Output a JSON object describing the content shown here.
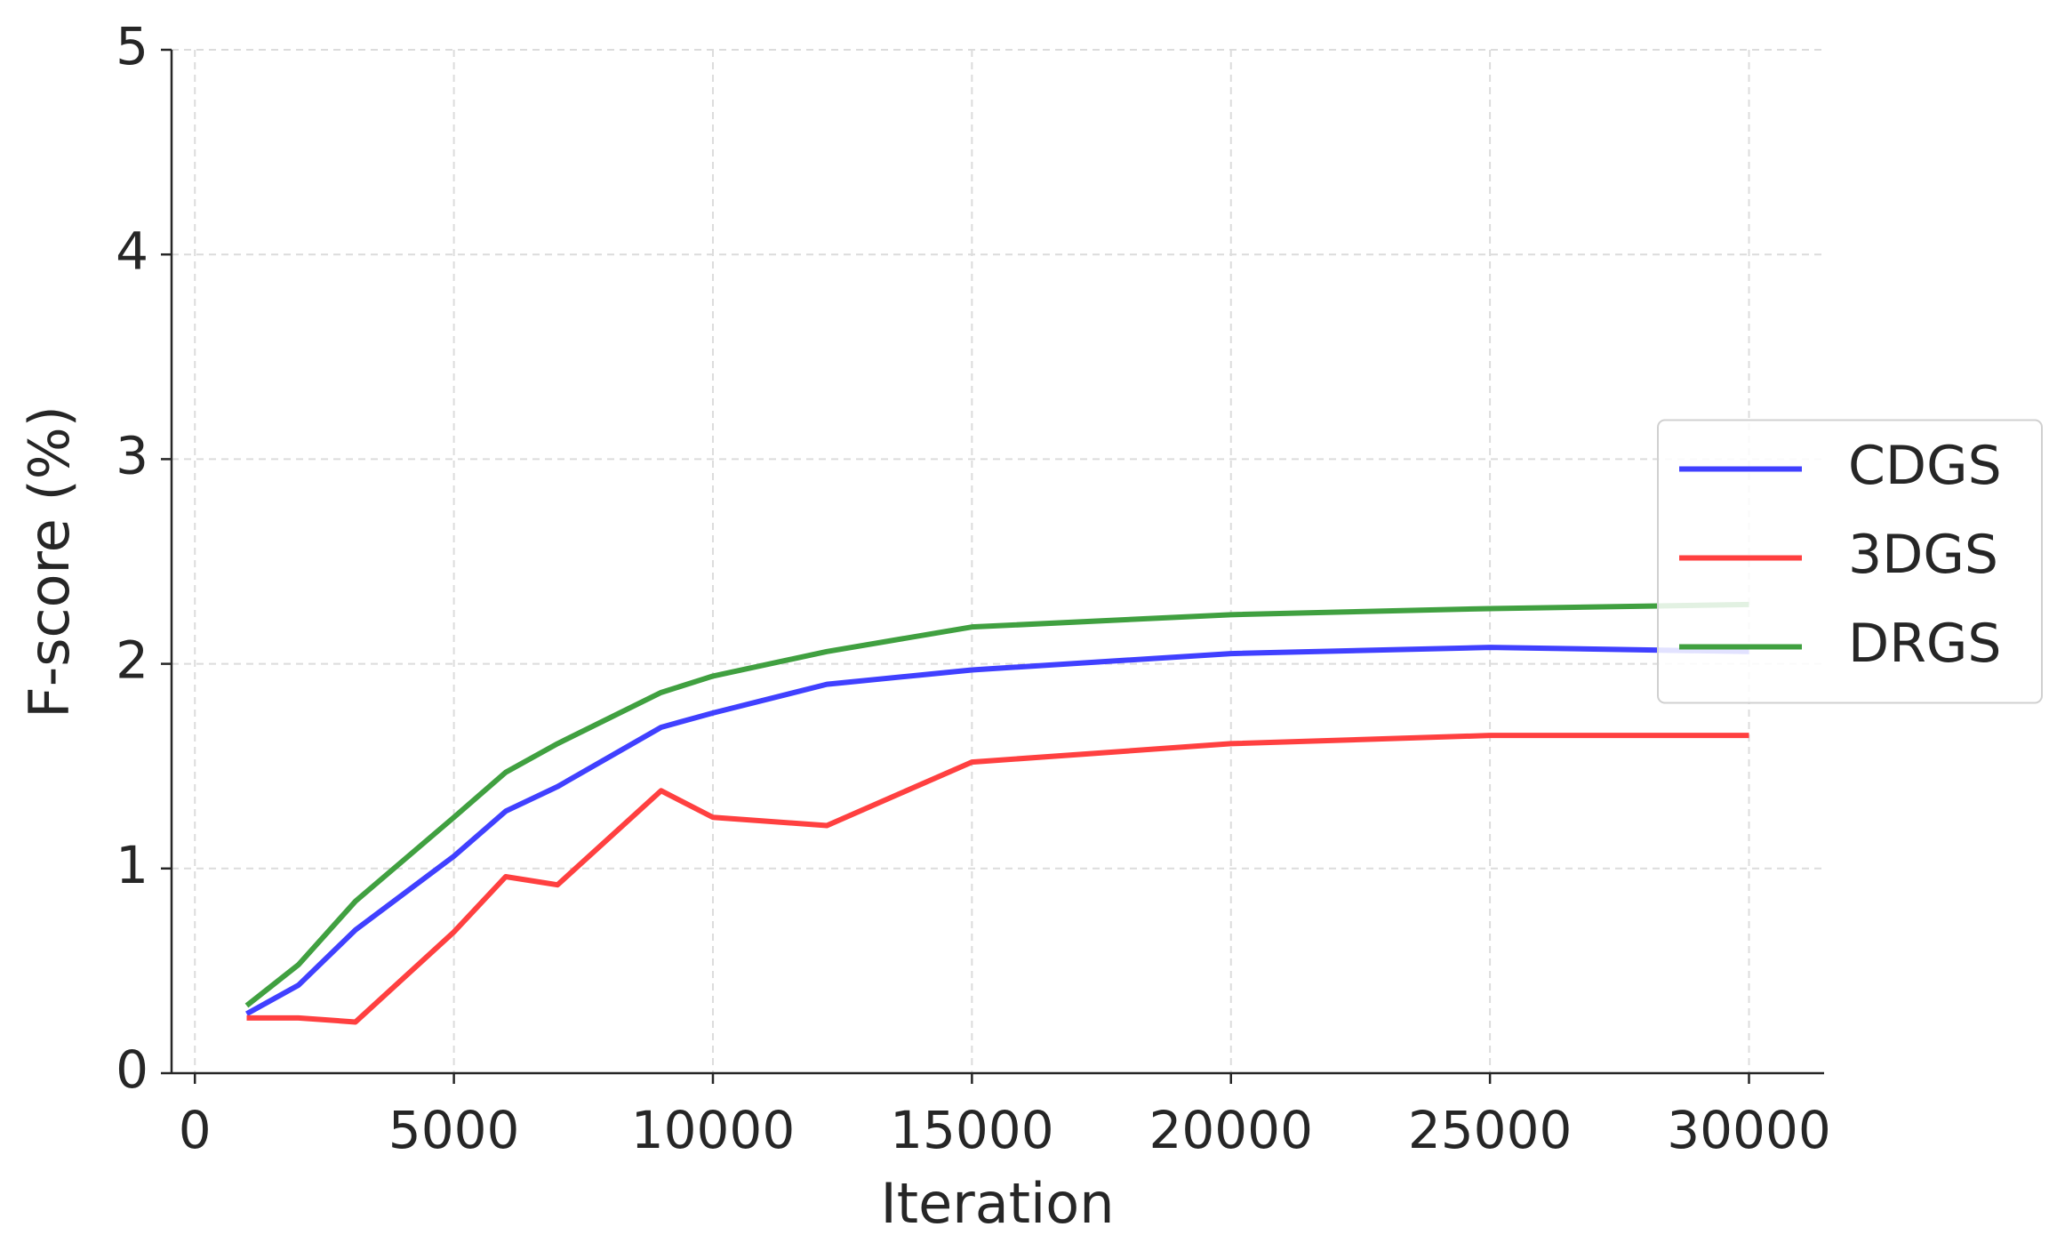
{
  "chart_data": {
    "type": "line",
    "x_label": "Iteration",
    "y_label": "F-score (%)",
    "x": [
      1000,
      2000,
      3100,
      5000,
      6000,
      7000,
      9000,
      10000,
      12200,
      15000,
      20000,
      25000,
      30000
    ],
    "series": [
      {
        "name": "CDGS",
        "color": "#4040ff",
        "values": [
          0.29,
          0.43,
          0.7,
          1.06,
          1.28,
          1.4,
          1.69,
          1.76,
          1.9,
          1.97,
          2.05,
          2.08,
          2.06
        ]
      },
      {
        "name": "3DGS",
        "color": "#ff4040",
        "values": [
          0.27,
          0.27,
          0.25,
          0.69,
          0.96,
          0.92,
          1.38,
          1.25,
          1.21,
          1.52,
          1.61,
          1.65,
          1.65
        ]
      },
      {
        "name": "DRGS",
        "color": "#40a040",
        "values": [
          0.33,
          0.53,
          0.84,
          1.25,
          1.47,
          1.61,
          1.86,
          1.94,
          2.06,
          2.18,
          2.24,
          2.27,
          2.29
        ]
      }
    ],
    "xlim": [
      -450,
      31450
    ],
    "ylim": [
      0,
      5
    ],
    "xticks": [
      0,
      5000,
      10000,
      15000,
      20000,
      25000,
      30000
    ],
    "yticks": [
      0,
      1,
      2,
      3,
      4,
      5
    ],
    "grid": true,
    "legend": "center right"
  }
}
